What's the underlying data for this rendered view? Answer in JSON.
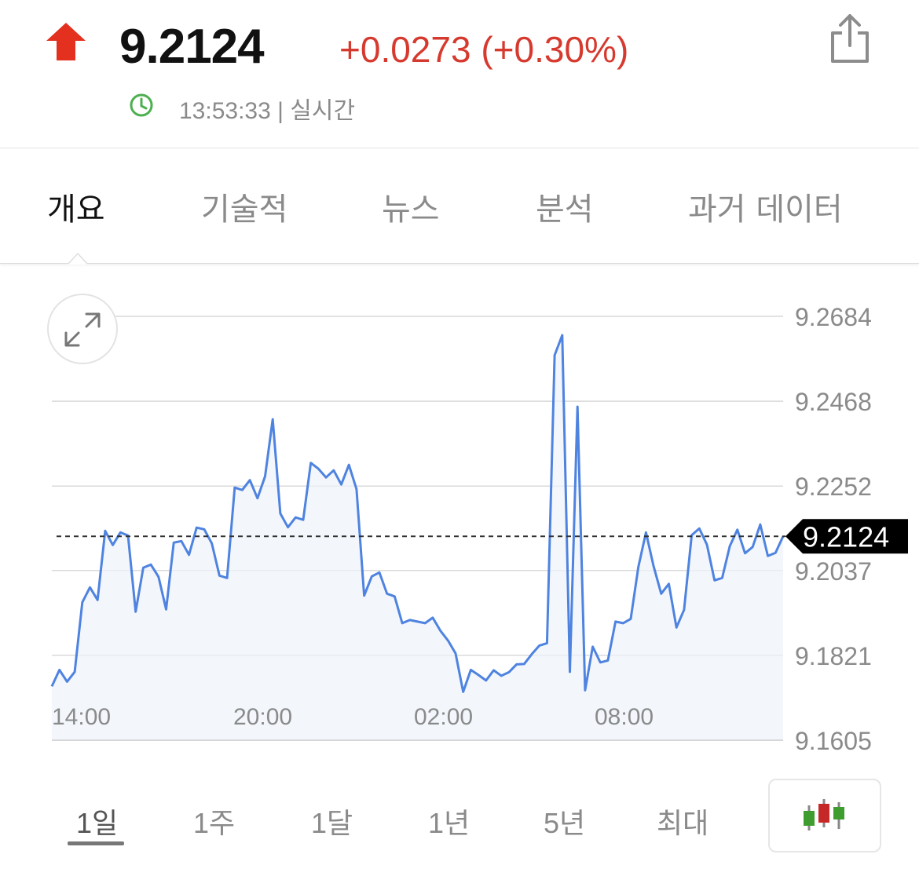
{
  "quote": {
    "price": "9.2124",
    "change": "+0.0273 (+0.30%)",
    "timestamp": "13:53:33 | 실시간"
  },
  "colors": {
    "up": "#e3301f",
    "change_text": "#d63a2f",
    "line": "#4f83e0",
    "clock": "#4caf50"
  },
  "icons": {
    "direction": "up-arrow-icon",
    "share": "share-icon",
    "clock": "clock-icon",
    "expand": "expand-icon",
    "chart_type": "candlestick-icon"
  },
  "tabs": [
    {
      "label": "개요",
      "active": true
    },
    {
      "label": "기술적",
      "active": false
    },
    {
      "label": "뉴스",
      "active": false
    },
    {
      "label": "분석",
      "active": false
    },
    {
      "label": "과거 데이터",
      "active": false
    }
  ],
  "ranges": [
    {
      "label": "1일",
      "active": true
    },
    {
      "label": "1주",
      "active": false
    },
    {
      "label": "1달",
      "active": false
    },
    {
      "label": "1년",
      "active": false
    },
    {
      "label": "5년",
      "active": false
    },
    {
      "label": "최대",
      "active": false
    }
  ],
  "chart_data": {
    "type": "area",
    "title": "",
    "xlabel": "",
    "ylabel": "",
    "x_ticks": [
      "14:00",
      "20:00",
      "02:00",
      "08:00"
    ],
    "y_ticks": [
      "9.2684",
      "9.2468",
      "9.2252",
      "9.2037",
      "9.1821",
      "9.1605"
    ],
    "ylim": [
      9.1605,
      9.2684
    ],
    "current_value_label": "9.2124",
    "current_value": 9.2124,
    "grid": true,
    "series": [
      {
        "values": [
          9.1742,
          9.1784,
          9.1754,
          9.1779,
          9.1956,
          9.1994,
          9.1962,
          9.2138,
          9.2102,
          9.2134,
          9.2126,
          9.1932,
          9.2044,
          9.2052,
          9.2021,
          9.1938,
          9.2108,
          9.2112,
          9.2077,
          9.2146,
          9.2142,
          9.2106,
          9.2024,
          9.2018,
          9.2248,
          9.2242,
          9.2267,
          9.2221,
          9.2277,
          9.2422,
          9.2182,
          9.2147,
          9.2172,
          9.2166,
          9.2311,
          9.2296,
          9.2274,
          9.2292,
          9.2256,
          9.2306,
          9.2244,
          9.1973,
          9.2022,
          9.2032,
          9.1978,
          9.1971,
          9.1903,
          9.1911,
          9.1907,
          9.1903,
          9.1917,
          9.1884,
          9.1859,
          9.1826,
          9.1728,
          9.1784,
          9.1771,
          9.1757,
          9.1783,
          9.1769,
          9.1778,
          9.1798,
          9.1799,
          9.1824,
          9.1846,
          9.1852,
          9.2585,
          9.2636,
          9.1779,
          9.2454,
          9.1732,
          9.1843,
          9.1803,
          9.1808,
          9.1907,
          9.1903,
          9.1914,
          9.2046,
          9.2134,
          9.2048,
          9.1978,
          9.2003,
          9.1892,
          9.1937,
          9.2127,
          9.2144,
          9.2103,
          9.2012,
          9.2018,
          9.2099,
          9.2141,
          9.2081,
          9.2097,
          9.2154,
          9.2074,
          9.2082,
          9.2124
        ]
      }
    ]
  }
}
